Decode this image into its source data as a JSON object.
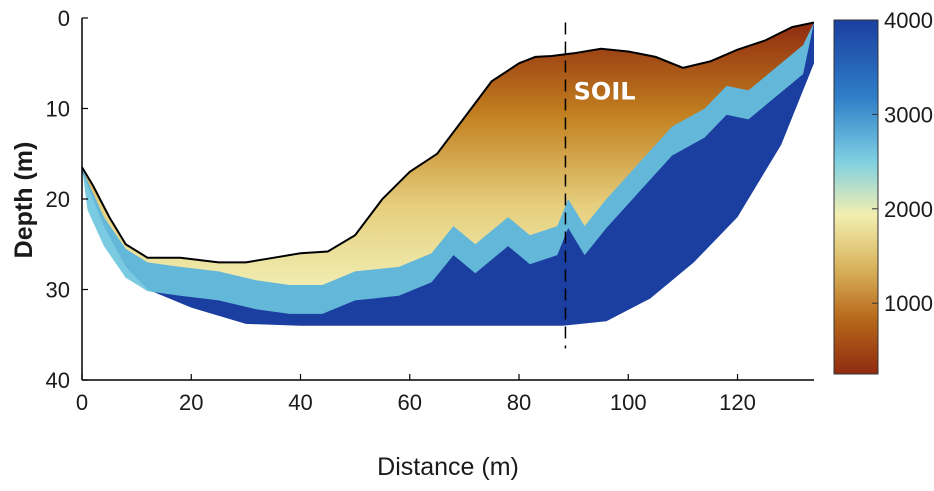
{
  "chart_data": {
    "type": "heatmap",
    "title": "",
    "xlabel": "Distance (m)",
    "ylabel": "Depth (m)",
    "xlim": [
      0,
      134
    ],
    "ylim": [
      40,
      0
    ],
    "x_ticks": [
      0,
      20,
      40,
      60,
      80,
      100,
      120
    ],
    "y_ticks": [
      0,
      10,
      20,
      30,
      40
    ],
    "grid": false,
    "colorbar": {
      "range": [
        250,
        4000
      ],
      "ticks": [
        1000,
        2000,
        3000,
        4000
      ],
      "colormap": [
        "#8f2b10",
        "#b86a1c",
        "#d9b45e",
        "#f2eeb0",
        "#7fd0e2",
        "#2f7fc8",
        "#1b3fa0"
      ]
    },
    "surface_profile": {
      "x": [
        0,
        2,
        5,
        8,
        12,
        18,
        25,
        30,
        35,
        40,
        45,
        50,
        55,
        60,
        65,
        70,
        75,
        80,
        83,
        86,
        90,
        95,
        100,
        105,
        110,
        115,
        120,
        125,
        130,
        134
      ],
      "y": [
        16.5,
        18.5,
        22,
        25,
        26.5,
        26.5,
        27,
        27,
        26.5,
        26,
        25.8,
        24,
        20,
        17,
        15,
        11,
        7,
        5,
        4.3,
        4.2,
        3.9,
        3.4,
        3.7,
        4.3,
        5.5,
        4.8,
        3.5,
        2.5,
        1,
        0.5
      ]
    },
    "dashed_line_x": 88.5,
    "annotations": [
      {
        "text": "SOIL",
        "x": 90,
        "y": 9
      }
    ]
  }
}
